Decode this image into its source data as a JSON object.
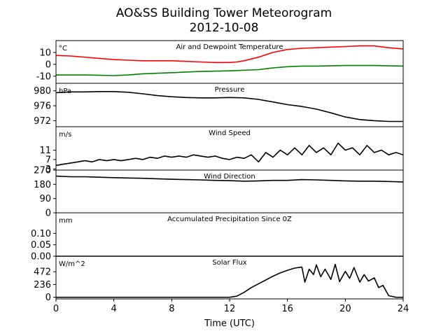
{
  "chart_data": {
    "type": "line",
    "title": "AO&SS Building Tower Meteorogram",
    "subtitle": "2012-10-08",
    "xlabel": "Time (UTC)",
    "xlim": [
      0,
      24
    ],
    "xticks": [
      0,
      4,
      8,
      12,
      16,
      20,
      24
    ],
    "grid": false,
    "panels": [
      {
        "key": "temp",
        "title": "Air and Dewpoint Temperature",
        "unit": "°C",
        "ylim": [
          -16,
          20
        ],
        "yticks": [
          10,
          0,
          -10
        ],
        "series": [
          {
            "color": "#ff0000",
            "x": [
              0,
              1,
              2,
              3,
              4,
              5,
              6,
              7,
              8,
              9,
              10,
              11,
              12,
              12.5,
              13,
              14,
              15,
              16,
              17,
              18,
              19,
              20,
              21,
              22,
              23,
              24
            ],
            "y": [
              7.5,
              7,
              6,
              5,
              4,
              3.5,
              3,
              3,
              3,
              2.5,
              2,
              1.5,
              1.5,
              2,
              3,
              6,
              10,
              12.5,
              13.5,
              14,
              14.5,
              15,
              15.5,
              15.5,
              14,
              13
            ]
          },
          {
            "color": "#008000",
            "x": [
              0,
              2,
              4,
              5,
              6,
              8,
              10,
              12,
              14,
              15,
              16,
              17,
              18,
              20,
              22,
              24
            ],
            "y": [
              -9,
              -9,
              -9.5,
              -9,
              -8,
              -7,
              -6,
              -5.5,
              -4.5,
              -3,
              -2,
              -1.5,
              -1.5,
              -1,
              -1,
              -1.5
            ]
          }
        ]
      },
      {
        "key": "pressure",
        "title": "Pressure",
        "unit": "hPa",
        "ylim": [
          970.4,
          982.0
        ],
        "yticks": [
          980,
          976,
          972
        ],
        "series": [
          {
            "color": "#000000",
            "x": [
              0,
              1,
              2,
              3,
              4,
              5,
              6,
              7,
              8,
              9,
              10,
              11,
              12,
              13,
              14,
              15,
              16,
              17,
              18,
              19,
              20,
              21,
              22,
              23,
              24
            ],
            "y": [
              979.5,
              979.7,
              979.7,
              979.8,
              979.8,
              979.6,
              979.2,
              978.7,
              978.4,
              978.2,
              978.1,
              978.1,
              978.2,
              978.1,
              977.7,
              977.0,
              976.3,
              975.8,
              975.1,
              974.1,
              973.0,
              972.3,
              972.0,
              971.8,
              971.8
            ]
          }
        ]
      },
      {
        "key": "wind_speed",
        "title": "Wind Speed",
        "unit": "m/s",
        "ylim": [
          2.5,
          21
        ],
        "yticks": [
          11,
          7,
          3
        ],
        "series": [
          {
            "color": "#000000",
            "x": [
              0,
              0.5,
              1,
              1.5,
              2,
              2.5,
              3,
              3.5,
              4,
              4.5,
              5,
              5.5,
              6,
              6.5,
              7,
              7.5,
              8,
              8.5,
              9,
              9.5,
              10,
              10.5,
              11,
              11.5,
              12,
              12.5,
              13,
              13.5,
              14,
              14.5,
              15,
              15.5,
              16,
              16.5,
              17,
              17.5,
              18,
              18.5,
              19,
              19.5,
              20,
              20.5,
              21,
              21.5,
              22,
              22.5,
              23,
              23.5,
              24
            ],
            "y": [
              4.5,
              5,
              5.5,
              6,
              6.5,
              6,
              7,
              6.5,
              7,
              6.5,
              7,
              7.5,
              7,
              8,
              7.5,
              8.5,
              8,
              8.5,
              8,
              9,
              8.5,
              8,
              8.5,
              7.5,
              7,
              8,
              7.5,
              9,
              6,
              10,
              8,
              11,
              9,
              12,
              9,
              13,
              10,
              12,
              9,
              14,
              11,
              12,
              9,
              13,
              10,
              11,
              9,
              10,
              9
            ]
          }
        ]
      },
      {
        "key": "wind_dir",
        "title": "Wind Direction",
        "unit": "",
        "ylim": [
          0,
          270
        ],
        "yticks": [
          270,
          180,
          90,
          0
        ],
        "series": [
          {
            "color": "#000000",
            "x": [
              0,
              1,
              2,
              3,
              4,
              5,
              6,
              7,
              8,
              9,
              10,
              11,
              12,
              13,
              14,
              15,
              16,
              17,
              18,
              19,
              20,
              21,
              22,
              23,
              24
            ],
            "y": [
              232,
              228,
              228,
              225,
              222,
              220,
              218,
              215,
              212,
              210,
              208,
              205,
              203,
              200,
              202,
              205,
              205,
              210,
              208,
              205,
              202,
              200,
              200,
              198,
              195
            ]
          }
        ]
      },
      {
        "key": "precip",
        "title": "Accumulated Precipitation Since 0Z",
        "unit": "mm",
        "ylim": [
          0,
          0.19
        ],
        "yticks": [
          "0.10",
          "0.05",
          "0.00"
        ],
        "ytickvals": [
          0.1,
          0.05,
          0.0
        ],
        "series": [
          {
            "color": "#000000",
            "x": [
              0,
              24
            ],
            "y": [
              0,
              0
            ]
          }
        ]
      },
      {
        "key": "solar",
        "title": "Solar Flux",
        "unit": "W/m^2",
        "ylim": [
          -30,
          760
        ],
        "yticks": [
          472,
          236,
          0
        ],
        "series": [
          {
            "color": "#000000",
            "x": [
              0,
              2,
              4,
              6,
              8,
              10,
              12,
              12.5,
              13,
              13.5,
              14,
              14.5,
              15,
              15.5,
              16,
              16.5,
              17,
              17.2,
              17.5,
              17.8,
              18,
              18.3,
              18.6,
              19,
              19.3,
              19.6,
              20,
              20.3,
              20.6,
              21,
              21.3,
              21.6,
              22,
              22.3,
              22.6,
              23,
              23.5,
              24
            ],
            "y": [
              0,
              0,
              0,
              0,
              0,
              0,
              0,
              20,
              90,
              180,
              250,
              320,
              390,
              450,
              500,
              540,
              560,
              280,
              520,
              420,
              600,
              380,
              520,
              330,
              610,
              290,
              480,
              350,
              550,
              280,
              420,
              300,
              360,
              180,
              220,
              30,
              0,
              0
            ]
          }
        ]
      }
    ]
  }
}
